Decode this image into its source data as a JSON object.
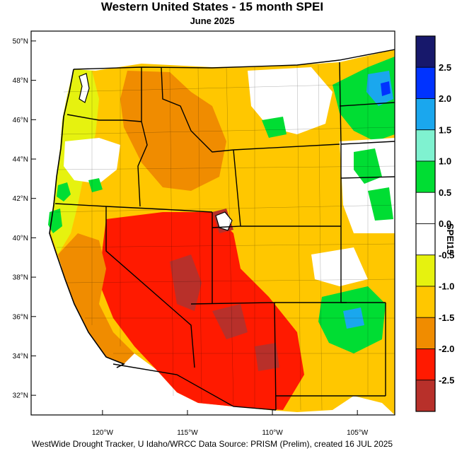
{
  "title": "Western United States - 15 month SPEI",
  "subtitle": "June 2025",
  "credit": "WestWide Drought Tracker, U Idaho/WRCC Data Source: PRISM (Prelim), created 16 JUL 2025",
  "map": {
    "lat_range": [
      31,
      50.5
    ],
    "lon_range": [
      -124.2,
      -102.8
    ],
    "lat_ticks": [
      {
        "value": 50,
        "label": "50°N"
      },
      {
        "value": 48,
        "label": "48°N"
      },
      {
        "value": 46,
        "label": "46°N"
      },
      {
        "value": 44,
        "label": "44°N"
      },
      {
        "value": 42,
        "label": "42°N"
      },
      {
        "value": 40,
        "label": "40°N"
      },
      {
        "value": 38,
        "label": "38°N"
      },
      {
        "value": 36,
        "label": "36°N"
      },
      {
        "value": 34,
        "label": "34°N"
      },
      {
        "value": 32,
        "label": "32°N"
      }
    ],
    "lon_ticks": [
      {
        "value": -120,
        "label": "120°W"
      },
      {
        "value": -115,
        "label": "115°W"
      },
      {
        "value": -110,
        "label": "110°W"
      },
      {
        "value": -105,
        "label": "105°W"
      }
    ],
    "regions": [
      {
        "name": "region-pacific-nw-coast",
        "class": "-1.0 to -0.5",
        "color": "#e6f20f"
      },
      {
        "name": "region-northern-rockies",
        "class": "-1.5 to -1.0",
        "color": "#ffc700"
      },
      {
        "name": "region-idaho-montana-dry",
        "class": "-2.0 to -1.5",
        "color": "#f08c00"
      },
      {
        "name": "region-wyoming",
        "class": "-1.5 to -1.0",
        "color": "#ffc700"
      },
      {
        "name": "region-great-basin",
        "class": "-2.5 to -2.0",
        "color": "#ff1a00"
      },
      {
        "name": "region-southwest-extreme",
        "class": "below -2.5",
        "color": "#b8302a"
      },
      {
        "name": "region-northern-plains-wet",
        "class": "0.5 to 1.0",
        "color": "#00dd33"
      },
      {
        "name": "region-southern-plains-wet",
        "class": "0.5 to 1.0",
        "color": "#00dd33"
      },
      {
        "name": "region-oregon-wet",
        "class": "0.5 to 1.0",
        "color": "#00dd33"
      },
      {
        "name": "region-montana-normal",
        "class": "-0.5 to 0.5",
        "color": "#ffffff"
      }
    ]
  },
  "colorbar": {
    "title": "SPEI15",
    "levels": [
      {
        "label": "",
        "color": "#17186b"
      },
      {
        "label": "2.5",
        "color": "#0033ff"
      },
      {
        "label": "2.0",
        "color": "#1aa7ee"
      },
      {
        "label": "1.5",
        "color": "#7ff2d0"
      },
      {
        "label": "1.0",
        "color": "#00dd33"
      },
      {
        "label": "0.5",
        "color": "#ffffff"
      },
      {
        "label": "0.0",
        "color": "#ffffff"
      },
      {
        "label": "-0.5",
        "color": "#e6f20f"
      },
      {
        "label": "-1.0",
        "color": "#ffc700"
      },
      {
        "label": "-1.5",
        "color": "#f08c00"
      },
      {
        "label": "-2.0",
        "color": "#ff1a00"
      },
      {
        "label": "-2.5",
        "color": "#b8302a"
      }
    ]
  }
}
